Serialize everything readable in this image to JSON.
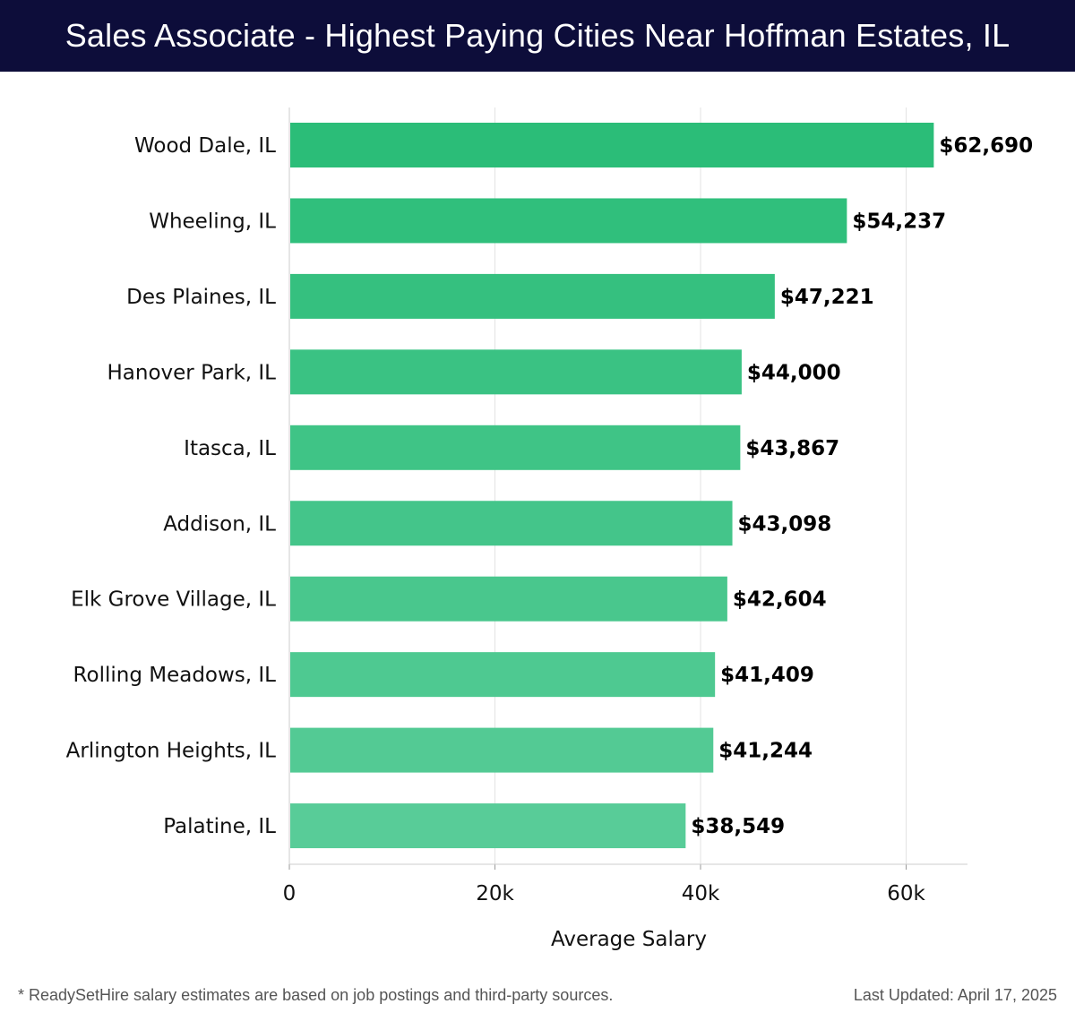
{
  "header": {
    "title": "Sales Associate - Highest Paying Cities Near Hoffman Estates, IL"
  },
  "colors": {
    "header_bg": "#0d0d3a",
    "bar_top": "#2bbd78",
    "bar_bottom": "#58cc98"
  },
  "chart_data": {
    "type": "bar",
    "orientation": "horizontal",
    "categories": [
      "Wood Dale, IL",
      "Wheeling, IL",
      "Des Plaines, IL",
      "Hanover Park, IL",
      "Itasca, IL",
      "Addison, IL",
      "Elk Grove Village, IL",
      "Rolling Meadows, IL",
      "Arlington Heights, IL",
      "Palatine, IL"
    ],
    "values": [
      62690,
      54237,
      47221,
      44000,
      43867,
      43098,
      42604,
      41409,
      41244,
      38549
    ],
    "value_labels": [
      "$62,690",
      "$54,237",
      "$47,221",
      "$44,000",
      "$43,867",
      "$43,098",
      "$42,604",
      "$41,409",
      "$41,244",
      "$38,549"
    ],
    "xlabel": "Average Salary",
    "ylabel": "",
    "xlim": [
      0,
      66000
    ],
    "xticks": [
      0,
      20000,
      40000,
      60000
    ],
    "xtick_labels": [
      "0",
      "20k",
      "40k",
      "60k"
    ],
    "grid": true
  },
  "footer": {
    "note": "* ReadySetHire salary estimates are based on job postings and third-party sources.",
    "updated": "Last Updated: April 17, 2025"
  }
}
